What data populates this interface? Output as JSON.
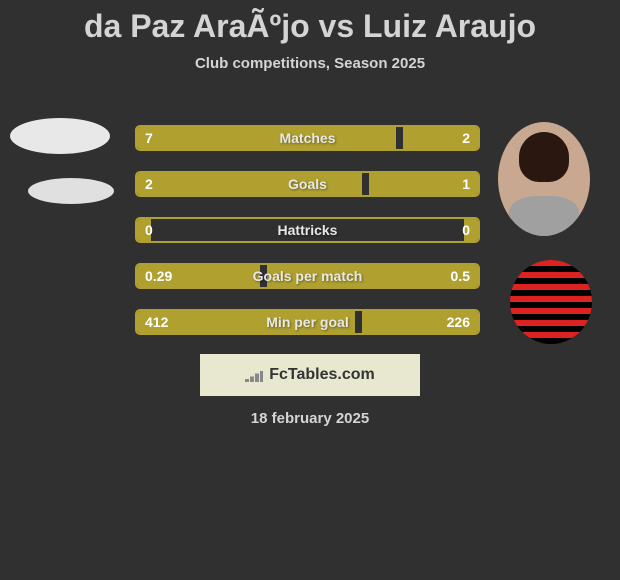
{
  "title": "da Paz AraÃºjo vs Luiz Araujo",
  "subtitle": "Club competitions, Season 2025",
  "date": "18 february 2025",
  "fctables_label": "FcTables.com",
  "colors": {
    "background": "#303030",
    "bar": "#afa030",
    "text": "#d4d4d4"
  },
  "stats": [
    {
      "label": "Matches",
      "left_val": "7",
      "right_val": "2",
      "left_pct": 76,
      "right_pct": 22
    },
    {
      "label": "Goals",
      "left_val": "2",
      "right_val": "1",
      "left_pct": 66,
      "right_pct": 32
    },
    {
      "label": "Hattricks",
      "left_val": "0",
      "right_val": "0",
      "left_pct": 4,
      "right_pct": 4
    },
    {
      "label": "Goals per match",
      "left_val": "0.29",
      "right_val": "0.5",
      "left_pct": 36,
      "right_pct": 62
    },
    {
      "label": "Min per goal",
      "left_val": "412",
      "right_val": "226",
      "left_pct": 64,
      "right_pct": 34
    }
  ]
}
